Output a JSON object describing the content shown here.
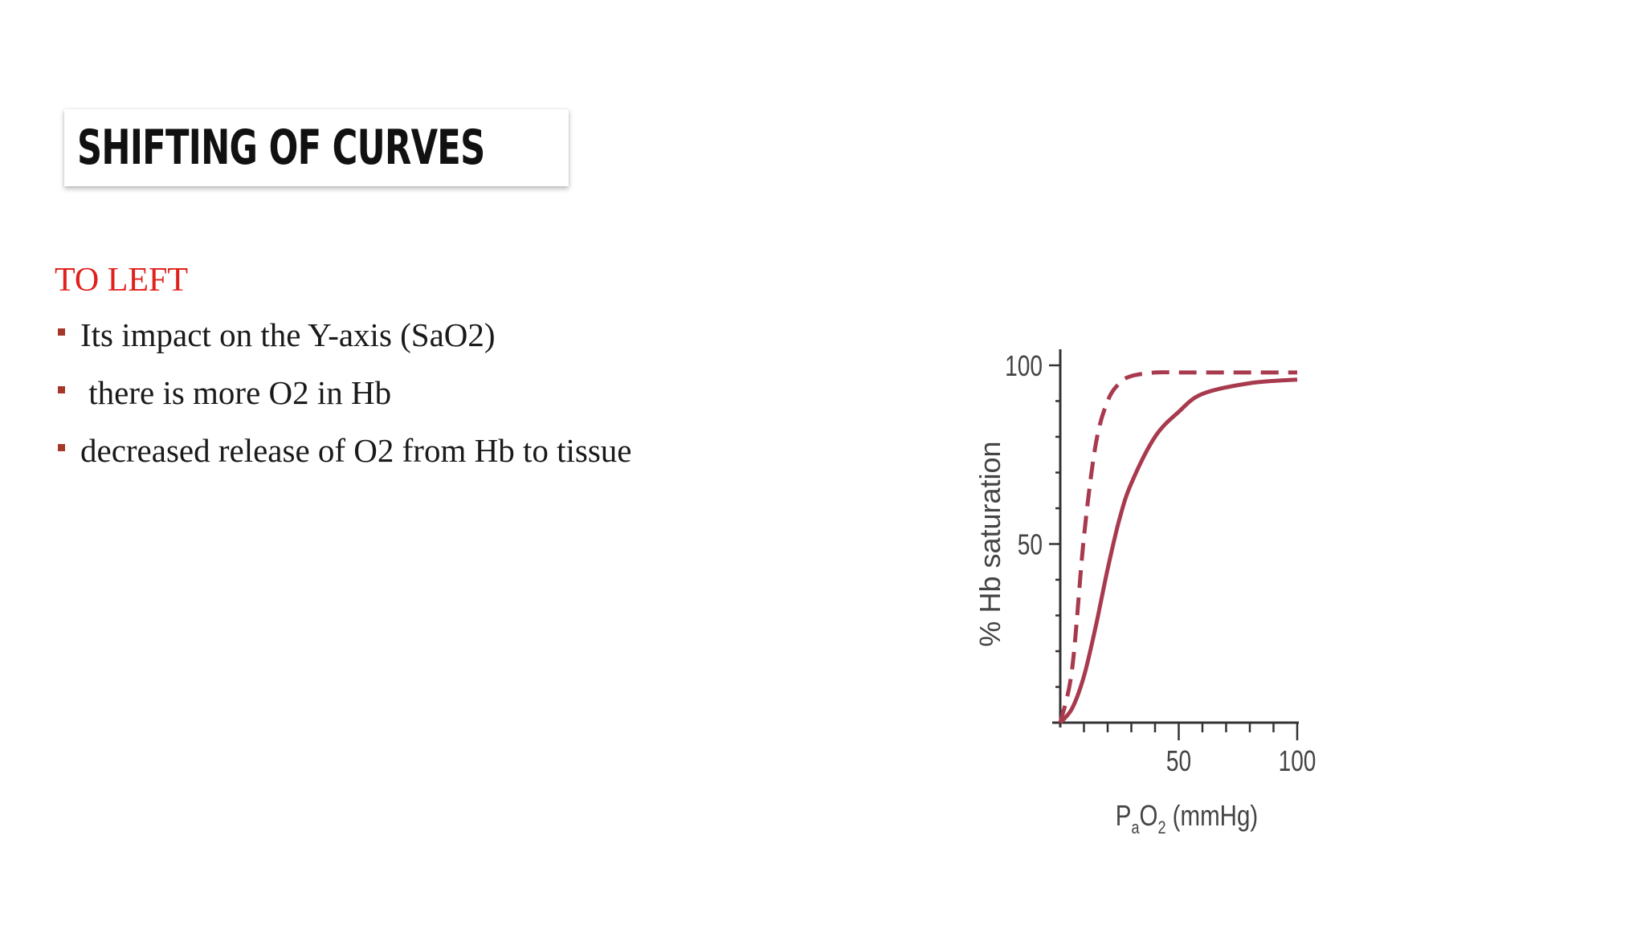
{
  "colors": {
    "accent": "#e0201c",
    "marker": "#a5382b",
    "curve": "#a83a4e",
    "axis": "#333333"
  },
  "slide": {
    "title": "SHIFTING OF CURVES",
    "subheading": "TO LEFT",
    "bullets": [
      "Its impact on the Y-axis (SaO2)",
      " there is more O2 in Hb",
      "decreased release of O2 from Hb to tissue"
    ]
  },
  "chart_data": {
    "type": "line",
    "ylabel": "% Hb saturation",
    "xlabel": "PaO2 (mmHg)",
    "xlabel_parts": {
      "p": "P",
      "a": "a",
      "o": "O",
      "sub2": "2",
      "unit": " (mmHg)"
    },
    "xlim": [
      0,
      100
    ],
    "ylim": [
      0,
      100
    ],
    "xticks": [
      50,
      100
    ],
    "yticks": [
      50,
      100
    ],
    "x_minor_step": 10,
    "y_minor_step": 10,
    "grid": false,
    "series": [
      {
        "style": "dashed",
        "x": [
          0,
          5,
          10,
          15,
          20,
          25,
          30,
          40,
          50,
          60,
          80,
          100
        ],
        "values": [
          0,
          15,
          52,
          78,
          90,
          95,
          97,
          98,
          98,
          98,
          98,
          98
        ]
      },
      {
        "style": "solid",
        "x": [
          0,
          5,
          10,
          15,
          20,
          25,
          30,
          40,
          50,
          60,
          80,
          100
        ],
        "values": [
          0,
          4,
          13,
          27,
          43,
          57,
          67,
          80,
          87,
          92,
          95,
          96
        ]
      }
    ]
  }
}
